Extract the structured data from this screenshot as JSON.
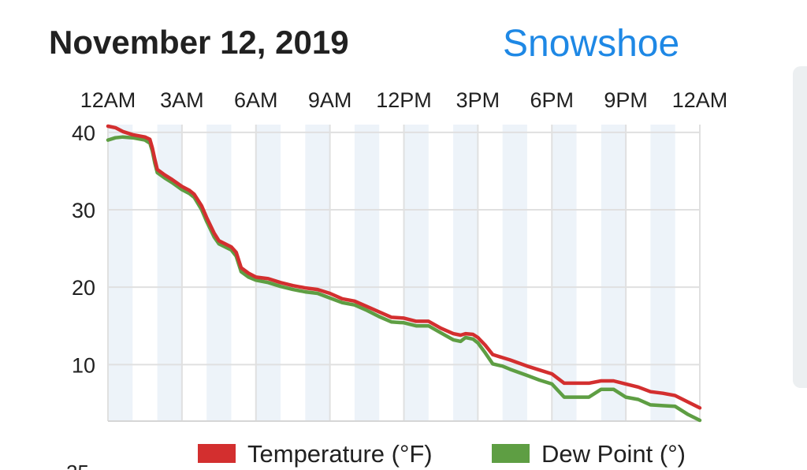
{
  "header": {
    "date": "November 12, 2019",
    "location": "Snowshoe"
  },
  "colors": {
    "temperature": "#d32f2f",
    "dew_point": "#5e9e43",
    "shade_band": "#edf3f9",
    "grid": "#e0e0e0"
  },
  "chart_data": {
    "type": "line",
    "x_ticks": [
      "12AM",
      "3AM",
      "6AM",
      "9AM",
      "12PM",
      "3PM",
      "6PM",
      "9PM",
      "12AM"
    ],
    "y_ticks": [
      10,
      20,
      30,
      40
    ],
    "x_range_hours": [
      0,
      24
    ],
    "ylim": [
      2.7,
      41
    ],
    "grid": true,
    "legend_position": "bottom",
    "series": [
      {
        "name": "Temperature (°F)",
        "color": "#d32f2f",
        "points": [
          [
            0.0,
            40.8
          ],
          [
            0.3,
            40.6
          ],
          [
            0.6,
            40.1
          ],
          [
            1.0,
            39.7
          ],
          [
            1.5,
            39.4
          ],
          [
            1.7,
            39.1
          ],
          [
            1.8,
            38.0
          ],
          [
            1.9,
            36.5
          ],
          [
            2.0,
            35.2
          ],
          [
            2.3,
            34.5
          ],
          [
            2.6,
            33.9
          ],
          [
            3.0,
            33.0
          ],
          [
            3.3,
            32.5
          ],
          [
            3.5,
            32.0
          ],
          [
            3.8,
            30.5
          ],
          [
            4.0,
            29.0
          ],
          [
            4.3,
            27.0
          ],
          [
            4.5,
            26.0
          ],
          [
            5.0,
            25.2
          ],
          [
            5.2,
            24.5
          ],
          [
            5.4,
            22.5
          ],
          [
            5.7,
            21.8
          ],
          [
            6.0,
            21.3
          ],
          [
            6.5,
            21.1
          ],
          [
            7.0,
            20.6
          ],
          [
            7.5,
            20.2
          ],
          [
            8.0,
            19.9
          ],
          [
            8.5,
            19.7
          ],
          [
            9.0,
            19.2
          ],
          [
            9.5,
            18.5
          ],
          [
            10.0,
            18.2
          ],
          [
            10.5,
            17.5
          ],
          [
            11.0,
            16.8
          ],
          [
            11.5,
            16.1
          ],
          [
            12.0,
            16.0
          ],
          [
            12.5,
            15.6
          ],
          [
            13.0,
            15.6
          ],
          [
            13.5,
            14.7
          ],
          [
            14.0,
            14.0
          ],
          [
            14.3,
            13.8
          ],
          [
            14.5,
            14.0
          ],
          [
            14.8,
            13.9
          ],
          [
            15.0,
            13.5
          ],
          [
            15.3,
            12.5
          ],
          [
            15.6,
            11.3
          ],
          [
            16.0,
            10.9
          ],
          [
            16.3,
            10.6
          ],
          [
            17.0,
            9.8
          ],
          [
            17.5,
            9.3
          ],
          [
            18.0,
            8.8
          ],
          [
            18.5,
            7.6
          ],
          [
            19.0,
            7.6
          ],
          [
            19.5,
            7.6
          ],
          [
            20.0,
            7.9
          ],
          [
            20.5,
            7.9
          ],
          [
            21.0,
            7.5
          ],
          [
            21.5,
            7.1
          ],
          [
            22.0,
            6.5
          ],
          [
            22.5,
            6.3
          ],
          [
            23.0,
            6.0
          ],
          [
            23.5,
            5.2
          ],
          [
            24.0,
            4.4
          ]
        ]
      },
      {
        "name": "Dew Point (°)",
        "color": "#5e9e43",
        "points": [
          [
            0.0,
            39.0
          ],
          [
            0.3,
            39.3
          ],
          [
            0.6,
            39.4
          ],
          [
            1.0,
            39.3
          ],
          [
            1.5,
            39.0
          ],
          [
            1.7,
            38.6
          ],
          [
            1.8,
            37.6
          ],
          [
            1.9,
            36.0
          ],
          [
            2.0,
            34.8
          ],
          [
            2.3,
            34.1
          ],
          [
            2.6,
            33.5
          ],
          [
            3.0,
            32.6
          ],
          [
            3.3,
            32.1
          ],
          [
            3.5,
            31.6
          ],
          [
            3.8,
            30.0
          ],
          [
            4.0,
            28.5
          ],
          [
            4.3,
            26.5
          ],
          [
            4.5,
            25.6
          ],
          [
            5.0,
            24.8
          ],
          [
            5.2,
            24.0
          ],
          [
            5.4,
            22.0
          ],
          [
            5.7,
            21.3
          ],
          [
            6.0,
            20.9
          ],
          [
            6.5,
            20.6
          ],
          [
            7.0,
            20.1
          ],
          [
            7.5,
            19.7
          ],
          [
            8.0,
            19.4
          ],
          [
            8.5,
            19.2
          ],
          [
            9.0,
            18.6
          ],
          [
            9.5,
            18.0
          ],
          [
            10.0,
            17.7
          ],
          [
            10.5,
            17.0
          ],
          [
            11.0,
            16.2
          ],
          [
            11.5,
            15.5
          ],
          [
            12.0,
            15.4
          ],
          [
            12.5,
            15.0
          ],
          [
            13.0,
            15.0
          ],
          [
            13.5,
            14.1
          ],
          [
            14.0,
            13.2
          ],
          [
            14.3,
            13.0
          ],
          [
            14.5,
            13.5
          ],
          [
            14.8,
            13.3
          ],
          [
            15.0,
            12.8
          ],
          [
            15.3,
            11.5
          ],
          [
            15.6,
            10.1
          ],
          [
            16.0,
            9.8
          ],
          [
            16.3,
            9.4
          ],
          [
            17.0,
            8.6
          ],
          [
            17.5,
            8.0
          ],
          [
            18.0,
            7.5
          ],
          [
            18.5,
            5.8
          ],
          [
            19.0,
            5.8
          ],
          [
            19.5,
            5.8
          ],
          [
            20.0,
            6.8
          ],
          [
            20.5,
            6.8
          ],
          [
            21.0,
            5.8
          ],
          [
            21.5,
            5.5
          ],
          [
            22.0,
            4.8
          ],
          [
            22.5,
            4.7
          ],
          [
            23.0,
            4.6
          ],
          [
            23.5,
            3.6
          ],
          [
            24.0,
            2.8
          ]
        ]
      }
    ]
  },
  "legend": {
    "temperature_label": "Temperature (°F)",
    "dew_point_label": "Dew Point (°)"
  }
}
